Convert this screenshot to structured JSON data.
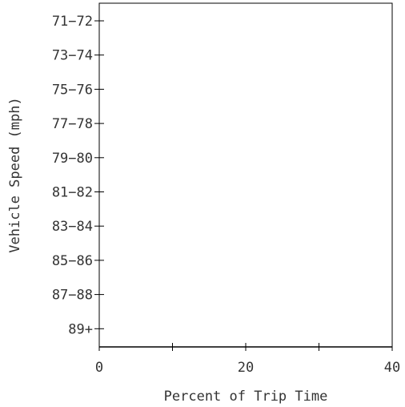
{
  "chart_data": {
    "type": "bar",
    "orientation": "horizontal",
    "title": "",
    "xlabel": "Percent of Trip Time",
    "ylabel": "Vehicle Speed (mph)",
    "categories": [
      "71-72",
      "73-74",
      "75-76",
      "77-78",
      "79-80",
      "81-82",
      "83-84",
      "85-86",
      "87-88",
      "89+"
    ],
    "values": [
      0,
      0,
      0,
      0,
      0,
      0,
      0,
      0,
      0,
      0
    ],
    "xlim": [
      0,
      40
    ],
    "xticks": [
      0,
      20,
      40
    ],
    "x_minor_ticks": [
      10,
      30
    ],
    "grid": false,
    "legend": "none"
  }
}
